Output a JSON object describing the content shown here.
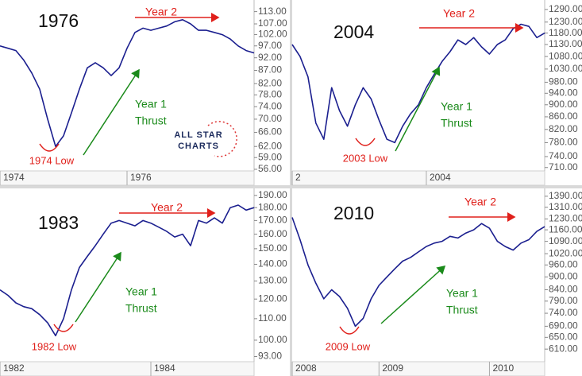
{
  "chart_data": [
    {
      "type": "line",
      "title": "1976",
      "color": "#1b1f8f",
      "log_scale": true,
      "values": [
        97,
        96,
        95,
        91,
        86,
        80,
        70,
        62,
        65,
        72,
        80,
        88,
        90,
        88,
        85,
        88,
        96,
        103,
        105,
        104,
        105,
        106,
        108,
        109,
        107,
        104,
        104,
        103,
        102,
        100,
        97,
        95,
        94
      ],
      "ylim": [
        55.6,
        119
      ],
      "yticks": [
        {
          "value": 113,
          "label": "113.00"
        },
        {
          "value": 107,
          "label": "107.00"
        },
        {
          "value": 102,
          "label": "102.00"
        },
        {
          "value": 97,
          "label": "97.00"
        },
        {
          "value": 92,
          "label": "92.00"
        },
        {
          "value": 87,
          "label": "87.00"
        },
        {
          "value": 82,
          "label": "82.00"
        },
        {
          "value": 78,
          "label": "78.00"
        },
        {
          "value": 74,
          "label": "74.00"
        },
        {
          "value": 70,
          "label": "70.00"
        },
        {
          "value": 66,
          "label": "66.00"
        },
        {
          "value": 62,
          "label": "62.00"
        },
        {
          "value": 59,
          "label": "59.00"
        },
        {
          "value": 56,
          "label": "56.00"
        }
      ],
      "xticks": [
        {
          "value": 0,
          "label": "1974"
        },
        {
          "value": 16,
          "label": "1976"
        }
      ],
      "annotations": {
        "year2": "Year 2",
        "thrust": [
          "Year 1",
          "Thrust"
        ],
        "low": "1974 Low"
      },
      "logo": [
        "ALL STAR",
        "CHARTS"
      ]
    },
    {
      "type": "line",
      "title": "2004",
      "color": "#1b1f8f",
      "log_scale": true,
      "values": [
        1130,
        1080,
        1000,
        840,
        790,
        960,
        880,
        830,
        900,
        960,
        920,
        850,
        790,
        780,
        830,
        870,
        900,
        960,
        1010,
        1060,
        1100,
        1150,
        1130,
        1160,
        1120,
        1090,
        1130,
        1150,
        1200,
        1220,
        1210,
        1160,
        1180
      ],
      "ylim": [
        701,
        1337
      ],
      "yticks": [
        {
          "value": 1290,
          "label": "1290.00"
        },
        {
          "value": 1230,
          "label": "1230.00"
        },
        {
          "value": 1180,
          "label": "1180.00"
        },
        {
          "value": 1130,
          "label": "1130.00"
        },
        {
          "value": 1080,
          "label": "1080.00"
        },
        {
          "value": 1030,
          "label": "1030.00"
        },
        {
          "value": 980,
          "label": "980.00"
        },
        {
          "value": 940,
          "label": "940.00"
        },
        {
          "value": 900,
          "label": "900.00"
        },
        {
          "value": 860,
          "label": "860.00"
        },
        {
          "value": 820,
          "label": "820.00"
        },
        {
          "value": 780,
          "label": "780.00"
        },
        {
          "value": 740,
          "label": "740.00"
        },
        {
          "value": 710,
          "label": "710.00"
        }
      ],
      "xticks": [
        {
          "value": 0,
          "label": "2"
        },
        {
          "value": 17,
          "label": "2004"
        }
      ],
      "annotations": {
        "year2": "Year 2",
        "thrust": [
          "Year 1",
          "Thrust"
        ],
        "low": "2003 Low"
      }
    },
    {
      "type": "line",
      "title": "1983",
      "color": "#1b1f8f",
      "log_scale": true,
      "values": [
        125,
        122,
        118,
        116,
        115,
        112,
        108,
        102,
        110,
        125,
        138,
        145,
        152,
        160,
        168,
        170,
        168,
        166,
        170,
        168,
        165,
        162,
        158,
        160,
        152,
        170,
        168,
        172,
        168,
        180,
        182,
        178,
        180
      ],
      "ylim": [
        90.9,
        196
      ],
      "yticks": [
        {
          "value": 190,
          "label": "190.00"
        },
        {
          "value": 180,
          "label": "180.00"
        },
        {
          "value": 170,
          "label": "170.00"
        },
        {
          "value": 160,
          "label": "160.00"
        },
        {
          "value": 150,
          "label": "150.00"
        },
        {
          "value": 140,
          "label": "140.00"
        },
        {
          "value": 130,
          "label": "130.00"
        },
        {
          "value": 120,
          "label": "120.00"
        },
        {
          "value": 110,
          "label": "110.00"
        },
        {
          "value": 100,
          "label": "100.00"
        },
        {
          "value": 93,
          "label": "93.00"
        }
      ],
      "xticks": [
        {
          "value": 0,
          "label": "1982"
        },
        {
          "value": 19,
          "label": "1984"
        }
      ],
      "annotations": {
        "year2": "Year 2",
        "thrust": [
          "Year 1",
          "Thrust"
        ],
        "low": "1982 Low"
      }
    },
    {
      "type": "line",
      "title": "2010",
      "color": "#1b1f8f",
      "log_scale": true,
      "values": [
        1240,
        1100,
        960,
        870,
        800,
        840,
        810,
        760,
        690,
        720,
        800,
        860,
        900,
        940,
        980,
        1000,
        1030,
        1060,
        1080,
        1090,
        1120,
        1110,
        1140,
        1160,
        1200,
        1170,
        1090,
        1060,
        1040,
        1080,
        1100,
        1150,
        1180
      ],
      "ylim": [
        570,
        1450
      ],
      "yticks": [
        {
          "value": 1390,
          "label": "1390.00"
        },
        {
          "value": 1310,
          "label": "1310.00"
        },
        {
          "value": 1230,
          "label": "1230.00"
        },
        {
          "value": 1160,
          "label": "1160.00"
        },
        {
          "value": 1090,
          "label": "1090.00"
        },
        {
          "value": 1020,
          "label": "1020.00"
        },
        {
          "value": 960,
          "label": "960.00"
        },
        {
          "value": 900,
          "label": "900.00"
        },
        {
          "value": 840,
          "label": "840.00"
        },
        {
          "value": 790,
          "label": "790.00"
        },
        {
          "value": 740,
          "label": "740.00"
        },
        {
          "value": 690,
          "label": "690.00"
        },
        {
          "value": 650,
          "label": "650.00"
        },
        {
          "value": 610,
          "label": "610.00"
        }
      ],
      "xticks": [
        {
          "value": 0,
          "label": "2008"
        },
        {
          "value": 11,
          "label": "2009"
        },
        {
          "value": 25,
          "label": "2010"
        }
      ],
      "annotations": {
        "year2": "Year 2",
        "thrust": [
          "Year 1",
          "Thrust"
        ],
        "low": "2009 Low"
      }
    }
  ]
}
